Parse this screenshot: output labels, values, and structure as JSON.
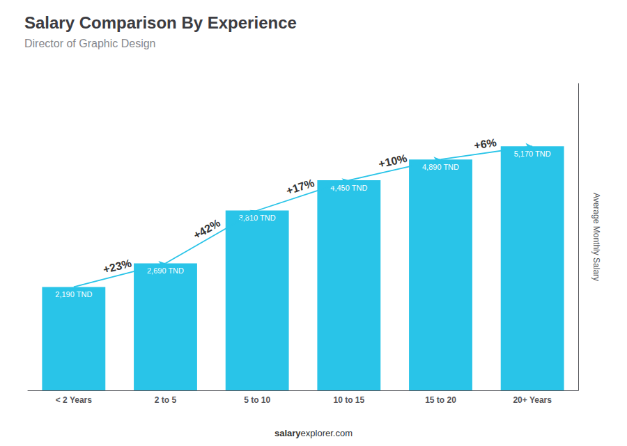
{
  "chart_data": {
    "type": "bar",
    "title": "Salary Comparison By Experience",
    "subtitle": "Director of Graphic Design",
    "categories": [
      "< 2 Years",
      "2 to 5",
      "5 to 10",
      "10 to 15",
      "15 to 20",
      "20+ Years"
    ],
    "values": [
      2190,
      2690,
      3810,
      4450,
      4890,
      5170
    ],
    "value_labels": [
      "2,190 TND",
      "2,690 TND",
      "3,810 TND",
      "4,450 TND",
      "4,890 TND",
      "5,170 TND"
    ],
    "data_labels": true,
    "annotations": [
      "+23%",
      "+42%",
      "+17%",
      "+10%",
      "+6%"
    ],
    "color": "#29C4E8",
    "ylabel": "Average Monthly Salary",
    "footer": [
      "salary",
      "explorer.com"
    ],
    "ylim": [
      0,
      6500
    ],
    "tick_labels": "x",
    "grid": false
  }
}
